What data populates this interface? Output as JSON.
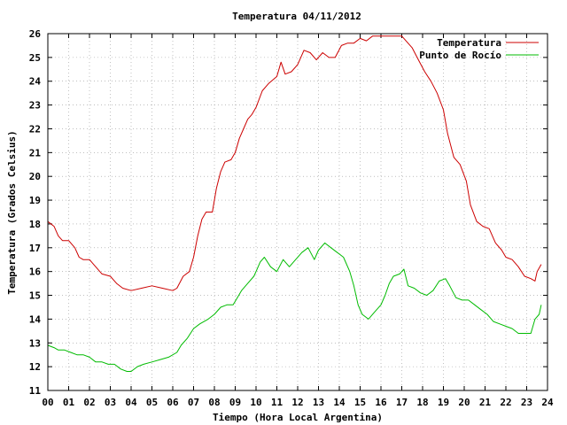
{
  "chart_data": {
    "type": "line",
    "title": "Temperatura 04/11/2012",
    "xlabel": "Tiempo (Hora Local Argentina)",
    "ylabel": "Temperatura (Grados Celsius)",
    "xlim": [
      0,
      24
    ],
    "ylim": [
      11,
      26
    ],
    "x_ticks": [
      "00",
      "01",
      "02",
      "03",
      "04",
      "05",
      "06",
      "07",
      "08",
      "09",
      "10",
      "11",
      "12",
      "13",
      "14",
      "15",
      "16",
      "17",
      "18",
      "19",
      "20",
      "21",
      "22",
      "23",
      "24"
    ],
    "y_ticks": [
      "11",
      "12",
      "13",
      "14",
      "15",
      "16",
      "17",
      "18",
      "19",
      "20",
      "21",
      "22",
      "23",
      "24",
      "25",
      "26"
    ],
    "grid": true,
    "legend_position": "top-right",
    "colors": {
      "Temperatura": "#cc0000",
      "Punto de Rocío": "#00bb00"
    },
    "series": [
      {
        "name": "Temperatura",
        "points": [
          [
            0,
            18.1
          ],
          [
            0.3,
            17.9
          ],
          [
            0.5,
            17.5
          ],
          [
            0.7,
            17.3
          ],
          [
            1.0,
            17.3
          ],
          [
            1.3,
            17.0
          ],
          [
            1.5,
            16.6
          ],
          [
            1.7,
            16.5
          ],
          [
            2.0,
            16.5
          ],
          [
            2.3,
            16.2
          ],
          [
            2.6,
            15.9
          ],
          [
            3.0,
            15.8
          ],
          [
            3.3,
            15.5
          ],
          [
            3.6,
            15.3
          ],
          [
            4.0,
            15.2
          ],
          [
            4.5,
            15.3
          ],
          [
            5.0,
            15.4
          ],
          [
            5.5,
            15.3
          ],
          [
            6.0,
            15.2
          ],
          [
            6.2,
            15.3
          ],
          [
            6.5,
            15.8
          ],
          [
            6.8,
            16.0
          ],
          [
            7.0,
            16.6
          ],
          [
            7.2,
            17.5
          ],
          [
            7.4,
            18.2
          ],
          [
            7.6,
            18.5
          ],
          [
            7.9,
            18.5
          ],
          [
            8.1,
            19.5
          ],
          [
            8.3,
            20.2
          ],
          [
            8.5,
            20.6
          ],
          [
            8.8,
            20.7
          ],
          [
            9.0,
            21.0
          ],
          [
            9.2,
            21.6
          ],
          [
            9.4,
            22.0
          ],
          [
            9.6,
            22.4
          ],
          [
            9.8,
            22.6
          ],
          [
            10.0,
            22.9
          ],
          [
            10.3,
            23.6
          ],
          [
            10.6,
            23.9
          ],
          [
            11.0,
            24.2
          ],
          [
            11.2,
            24.8
          ],
          [
            11.4,
            24.3
          ],
          [
            11.7,
            24.4
          ],
          [
            12.0,
            24.7
          ],
          [
            12.3,
            25.3
          ],
          [
            12.6,
            25.2
          ],
          [
            12.9,
            24.9
          ],
          [
            13.2,
            25.2
          ],
          [
            13.5,
            25.0
          ],
          [
            13.8,
            25.0
          ],
          [
            14.1,
            25.5
          ],
          [
            14.4,
            25.6
          ],
          [
            14.7,
            25.6
          ],
          [
            15.0,
            25.8
          ],
          [
            15.3,
            25.7
          ],
          [
            15.6,
            25.9
          ],
          [
            16.0,
            25.9
          ],
          [
            16.5,
            25.9
          ],
          [
            17.0,
            25.9
          ],
          [
            17.2,
            25.7
          ],
          [
            17.5,
            25.4
          ],
          [
            17.8,
            24.9
          ],
          [
            18.1,
            24.4
          ],
          [
            18.4,
            24.0
          ],
          [
            18.7,
            23.5
          ],
          [
            19.0,
            22.8
          ],
          [
            19.2,
            21.8
          ],
          [
            19.5,
            20.8
          ],
          [
            19.8,
            20.5
          ],
          [
            20.1,
            19.8
          ],
          [
            20.3,
            18.8
          ],
          [
            20.6,
            18.1
          ],
          [
            20.9,
            17.9
          ],
          [
            21.2,
            17.8
          ],
          [
            21.5,
            17.2
          ],
          [
            21.8,
            16.9
          ],
          [
            22.0,
            16.6
          ],
          [
            22.3,
            16.5
          ],
          [
            22.6,
            16.2
          ],
          [
            22.9,
            15.8
          ],
          [
            23.2,
            15.7
          ],
          [
            23.4,
            15.6
          ],
          [
            23.5,
            16.0
          ],
          [
            23.7,
            16.3
          ]
        ]
      },
      {
        "name": "Punto de Rocío",
        "points": [
          [
            0,
            12.9
          ],
          [
            0.3,
            12.8
          ],
          [
            0.5,
            12.7
          ],
          [
            0.8,
            12.7
          ],
          [
            1.1,
            12.6
          ],
          [
            1.4,
            12.5
          ],
          [
            1.7,
            12.5
          ],
          [
            2.0,
            12.4
          ],
          [
            2.3,
            12.2
          ],
          [
            2.6,
            12.2
          ],
          [
            2.9,
            12.1
          ],
          [
            3.2,
            12.1
          ],
          [
            3.5,
            11.9
          ],
          [
            3.8,
            11.8
          ],
          [
            4.0,
            11.8
          ],
          [
            4.3,
            12.0
          ],
          [
            4.6,
            12.1
          ],
          [
            5.0,
            12.2
          ],
          [
            5.4,
            12.3
          ],
          [
            5.8,
            12.4
          ],
          [
            6.2,
            12.6
          ],
          [
            6.4,
            12.9
          ],
          [
            6.7,
            13.2
          ],
          [
            7.0,
            13.6
          ],
          [
            7.3,
            13.8
          ],
          [
            7.7,
            14.0
          ],
          [
            8.0,
            14.2
          ],
          [
            8.3,
            14.5
          ],
          [
            8.6,
            14.6
          ],
          [
            8.9,
            14.6
          ],
          [
            9.1,
            14.9
          ],
          [
            9.3,
            15.2
          ],
          [
            9.6,
            15.5
          ],
          [
            9.9,
            15.8
          ],
          [
            10.0,
            16.0
          ],
          [
            10.2,
            16.4
          ],
          [
            10.4,
            16.6
          ],
          [
            10.7,
            16.2
          ],
          [
            11.0,
            16.0
          ],
          [
            11.3,
            16.5
          ],
          [
            11.6,
            16.2
          ],
          [
            11.9,
            16.5
          ],
          [
            12.2,
            16.8
          ],
          [
            12.5,
            17.0
          ],
          [
            12.8,
            16.5
          ],
          [
            13.0,
            16.9
          ],
          [
            13.3,
            17.2
          ],
          [
            13.6,
            17.0
          ],
          [
            13.9,
            16.8
          ],
          [
            14.2,
            16.6
          ],
          [
            14.5,
            16.0
          ],
          [
            14.7,
            15.4
          ],
          [
            14.9,
            14.6
          ],
          [
            15.1,
            14.2
          ],
          [
            15.4,
            14.0
          ],
          [
            15.7,
            14.3
          ],
          [
            16.0,
            14.6
          ],
          [
            16.2,
            15.0
          ],
          [
            16.4,
            15.5
          ],
          [
            16.6,
            15.8
          ],
          [
            16.9,
            15.9
          ],
          [
            17.1,
            16.1
          ],
          [
            17.3,
            15.4
          ],
          [
            17.6,
            15.3
          ],
          [
            17.9,
            15.1
          ],
          [
            18.2,
            15.0
          ],
          [
            18.5,
            15.2
          ],
          [
            18.8,
            15.6
          ],
          [
            19.1,
            15.7
          ],
          [
            19.3,
            15.4
          ],
          [
            19.6,
            14.9
          ],
          [
            19.9,
            14.8
          ],
          [
            20.2,
            14.8
          ],
          [
            20.5,
            14.6
          ],
          [
            20.8,
            14.4
          ],
          [
            21.1,
            14.2
          ],
          [
            21.4,
            13.9
          ],
          [
            21.7,
            13.8
          ],
          [
            22.0,
            13.7
          ],
          [
            22.3,
            13.6
          ],
          [
            22.6,
            13.4
          ],
          [
            22.9,
            13.4
          ],
          [
            23.2,
            13.4
          ],
          [
            23.4,
            14.0
          ],
          [
            23.6,
            14.2
          ],
          [
            23.7,
            14.6
          ]
        ]
      }
    ]
  }
}
